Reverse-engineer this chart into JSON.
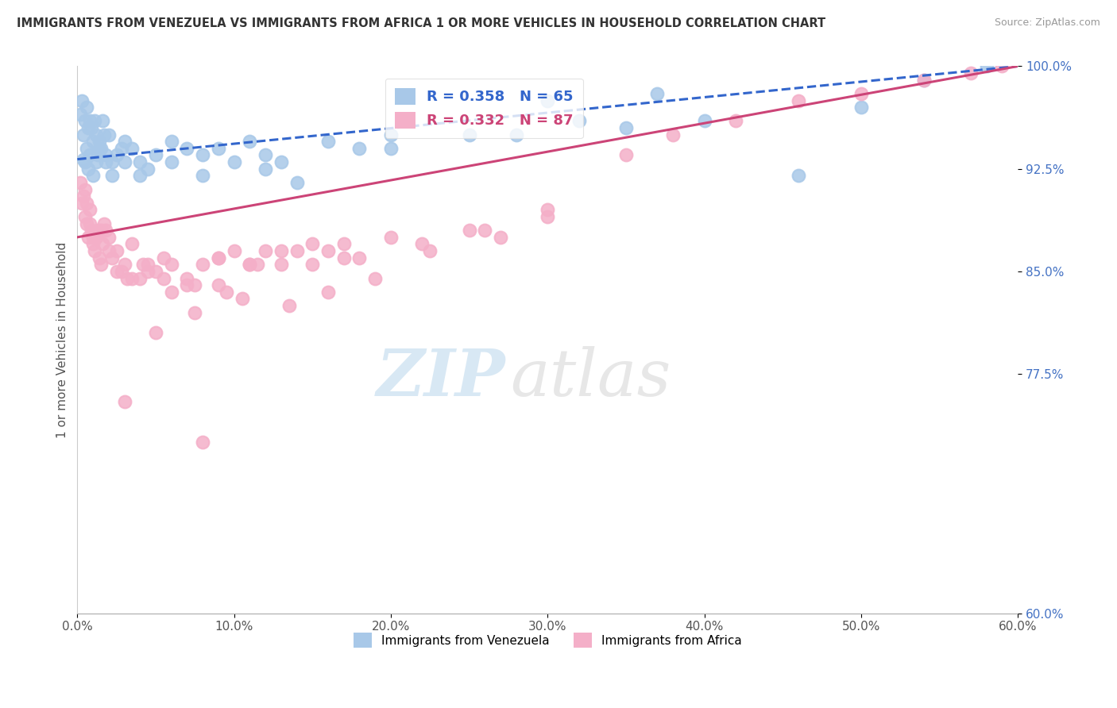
{
  "title": "IMMIGRANTS FROM VENEZUELA VS IMMIGRANTS FROM AFRICA 1 OR MORE VEHICLES IN HOUSEHOLD CORRELATION CHART",
  "source": "Source: ZipAtlas.com",
  "ylabel": "1 or more Vehicles in Household",
  "xlim": [
    0.0,
    60.0
  ],
  "ylim": [
    60.0,
    100.0
  ],
  "xticks": [
    0.0,
    10.0,
    20.0,
    30.0,
    40.0,
    50.0,
    60.0
  ],
  "yticks": [
    60.0,
    77.5,
    85.0,
    92.5,
    100.0
  ],
  "xtick_labels": [
    "0.0%",
    "10.0%",
    "20.0%",
    "30.0%",
    "40.0%",
    "50.0%",
    "60.0%"
  ],
  "ytick_labels": [
    "60.0%",
    "77.5%",
    "85.0%",
    "92.5%",
    "100.0%"
  ],
  "legend_label_venezuela": "Immigrants from Venezuela",
  "legend_label_africa": "Immigrants from Africa",
  "color_venezuela": "#a8c8e8",
  "color_africa": "#f4afc8",
  "trendline_venezuela_color": "#3366cc",
  "trendline_africa_color": "#cc4477",
  "background_color": "#ffffff",
  "watermark_zip": "ZIP",
  "watermark_atlas": "atlas",
  "R_venezuela": 0.358,
  "N_venezuela": 65,
  "R_africa": 0.332,
  "N_africa": 87,
  "ven_trend_x0": 0.0,
  "ven_trend_y0": 93.2,
  "ven_trend_x1": 60.0,
  "ven_trend_y1": 100.0,
  "afr_trend_x0": 0.0,
  "afr_trend_y0": 87.5,
  "afr_trend_x1": 60.0,
  "afr_trend_y1": 100.0,
  "venezuela_x": [
    0.2,
    0.3,
    0.4,
    0.5,
    0.6,
    0.7,
    0.8,
    0.9,
    1.0,
    1.1,
    1.2,
    1.3,
    1.4,
    1.5,
    1.6,
    1.7,
    1.8,
    2.0,
    2.2,
    2.5,
    2.8,
    3.0,
    3.5,
    4.0,
    4.5,
    5.0,
    6.0,
    7.0,
    8.0,
    9.0,
    10.0,
    11.0,
    12.0,
    13.0,
    14.0,
    16.0,
    18.0,
    20.0,
    25.0,
    30.0,
    32.0,
    37.0,
    46.0,
    54.0,
    58.0,
    0.5,
    0.6,
    0.7,
    0.8,
    1.0,
    1.2,
    1.4,
    1.8,
    2.2,
    3.0,
    4.0,
    6.0,
    8.0,
    12.0,
    20.0,
    28.0,
    35.0,
    40.0,
    50.0,
    0.4
  ],
  "venezuela_y": [
    96.5,
    97.5,
    95.0,
    96.0,
    97.0,
    95.5,
    96.0,
    95.5,
    94.5,
    96.0,
    95.0,
    93.5,
    94.5,
    94.0,
    96.0,
    95.0,
    93.5,
    95.0,
    93.0,
    93.5,
    94.0,
    94.5,
    94.0,
    93.0,
    92.5,
    93.5,
    94.5,
    94.0,
    93.5,
    94.0,
    93.0,
    94.5,
    92.5,
    93.0,
    91.5,
    94.5,
    94.0,
    95.0,
    95.0,
    97.5,
    96.0,
    98.0,
    92.0,
    99.0,
    100.0,
    93.0,
    94.0,
    92.5,
    93.5,
    92.0,
    93.0,
    94.0,
    93.0,
    92.0,
    93.0,
    92.0,
    93.0,
    92.0,
    93.5,
    94.0,
    95.0,
    95.5,
    96.0,
    97.0,
    93.2
  ],
  "africa_x": [
    0.2,
    0.3,
    0.4,
    0.5,
    0.6,
    0.7,
    0.8,
    0.9,
    1.0,
    1.1,
    1.2,
    1.3,
    1.4,
    1.5,
    1.6,
    1.7,
    1.8,
    2.0,
    2.2,
    2.5,
    2.8,
    3.0,
    3.5,
    4.0,
    4.5,
    5.0,
    6.0,
    7.0,
    8.0,
    9.0,
    10.0,
    11.0,
    12.0,
    13.0,
    14.0,
    15.0,
    16.0,
    17.0,
    18.0,
    20.0,
    22.0,
    25.0,
    27.0,
    30.0,
    2.5,
    3.5,
    4.5,
    5.5,
    7.0,
    9.0,
    11.0,
    13.0,
    15.0,
    17.0,
    7.5,
    9.5,
    11.5,
    3.2,
    4.2,
    5.5,
    6.0,
    7.5,
    9.0,
    10.5,
    13.5,
    16.0,
    19.0,
    22.5,
    26.0,
    30.0,
    35.0,
    38.0,
    42.0,
    46.0,
    50.0,
    54.0,
    57.0,
    59.0,
    0.5,
    0.6,
    0.8,
    1.0,
    1.5,
    2.0,
    3.0,
    5.0,
    8.0
  ],
  "africa_y": [
    91.5,
    90.0,
    90.5,
    89.0,
    88.5,
    87.5,
    89.5,
    88.0,
    87.0,
    86.5,
    87.5,
    88.0,
    86.0,
    85.5,
    87.0,
    88.5,
    88.0,
    87.5,
    86.0,
    86.5,
    85.0,
    85.5,
    87.0,
    84.5,
    85.5,
    85.0,
    85.5,
    84.0,
    85.5,
    86.0,
    86.5,
    85.5,
    86.5,
    85.5,
    86.5,
    87.0,
    86.5,
    87.0,
    86.0,
    87.5,
    87.0,
    88.0,
    87.5,
    89.0,
    85.0,
    84.5,
    85.0,
    86.0,
    84.5,
    86.0,
    85.5,
    86.5,
    85.5,
    86.0,
    84.0,
    83.5,
    85.5,
    84.5,
    85.5,
    84.5,
    83.5,
    82.0,
    84.0,
    83.0,
    82.5,
    83.5,
    84.5,
    86.5,
    88.0,
    89.5,
    93.5,
    95.0,
    96.0,
    97.5,
    98.0,
    99.0,
    99.5,
    100.0,
    91.0,
    90.0,
    88.5,
    87.5,
    88.0,
    86.5,
    75.5,
    80.5,
    72.5
  ]
}
